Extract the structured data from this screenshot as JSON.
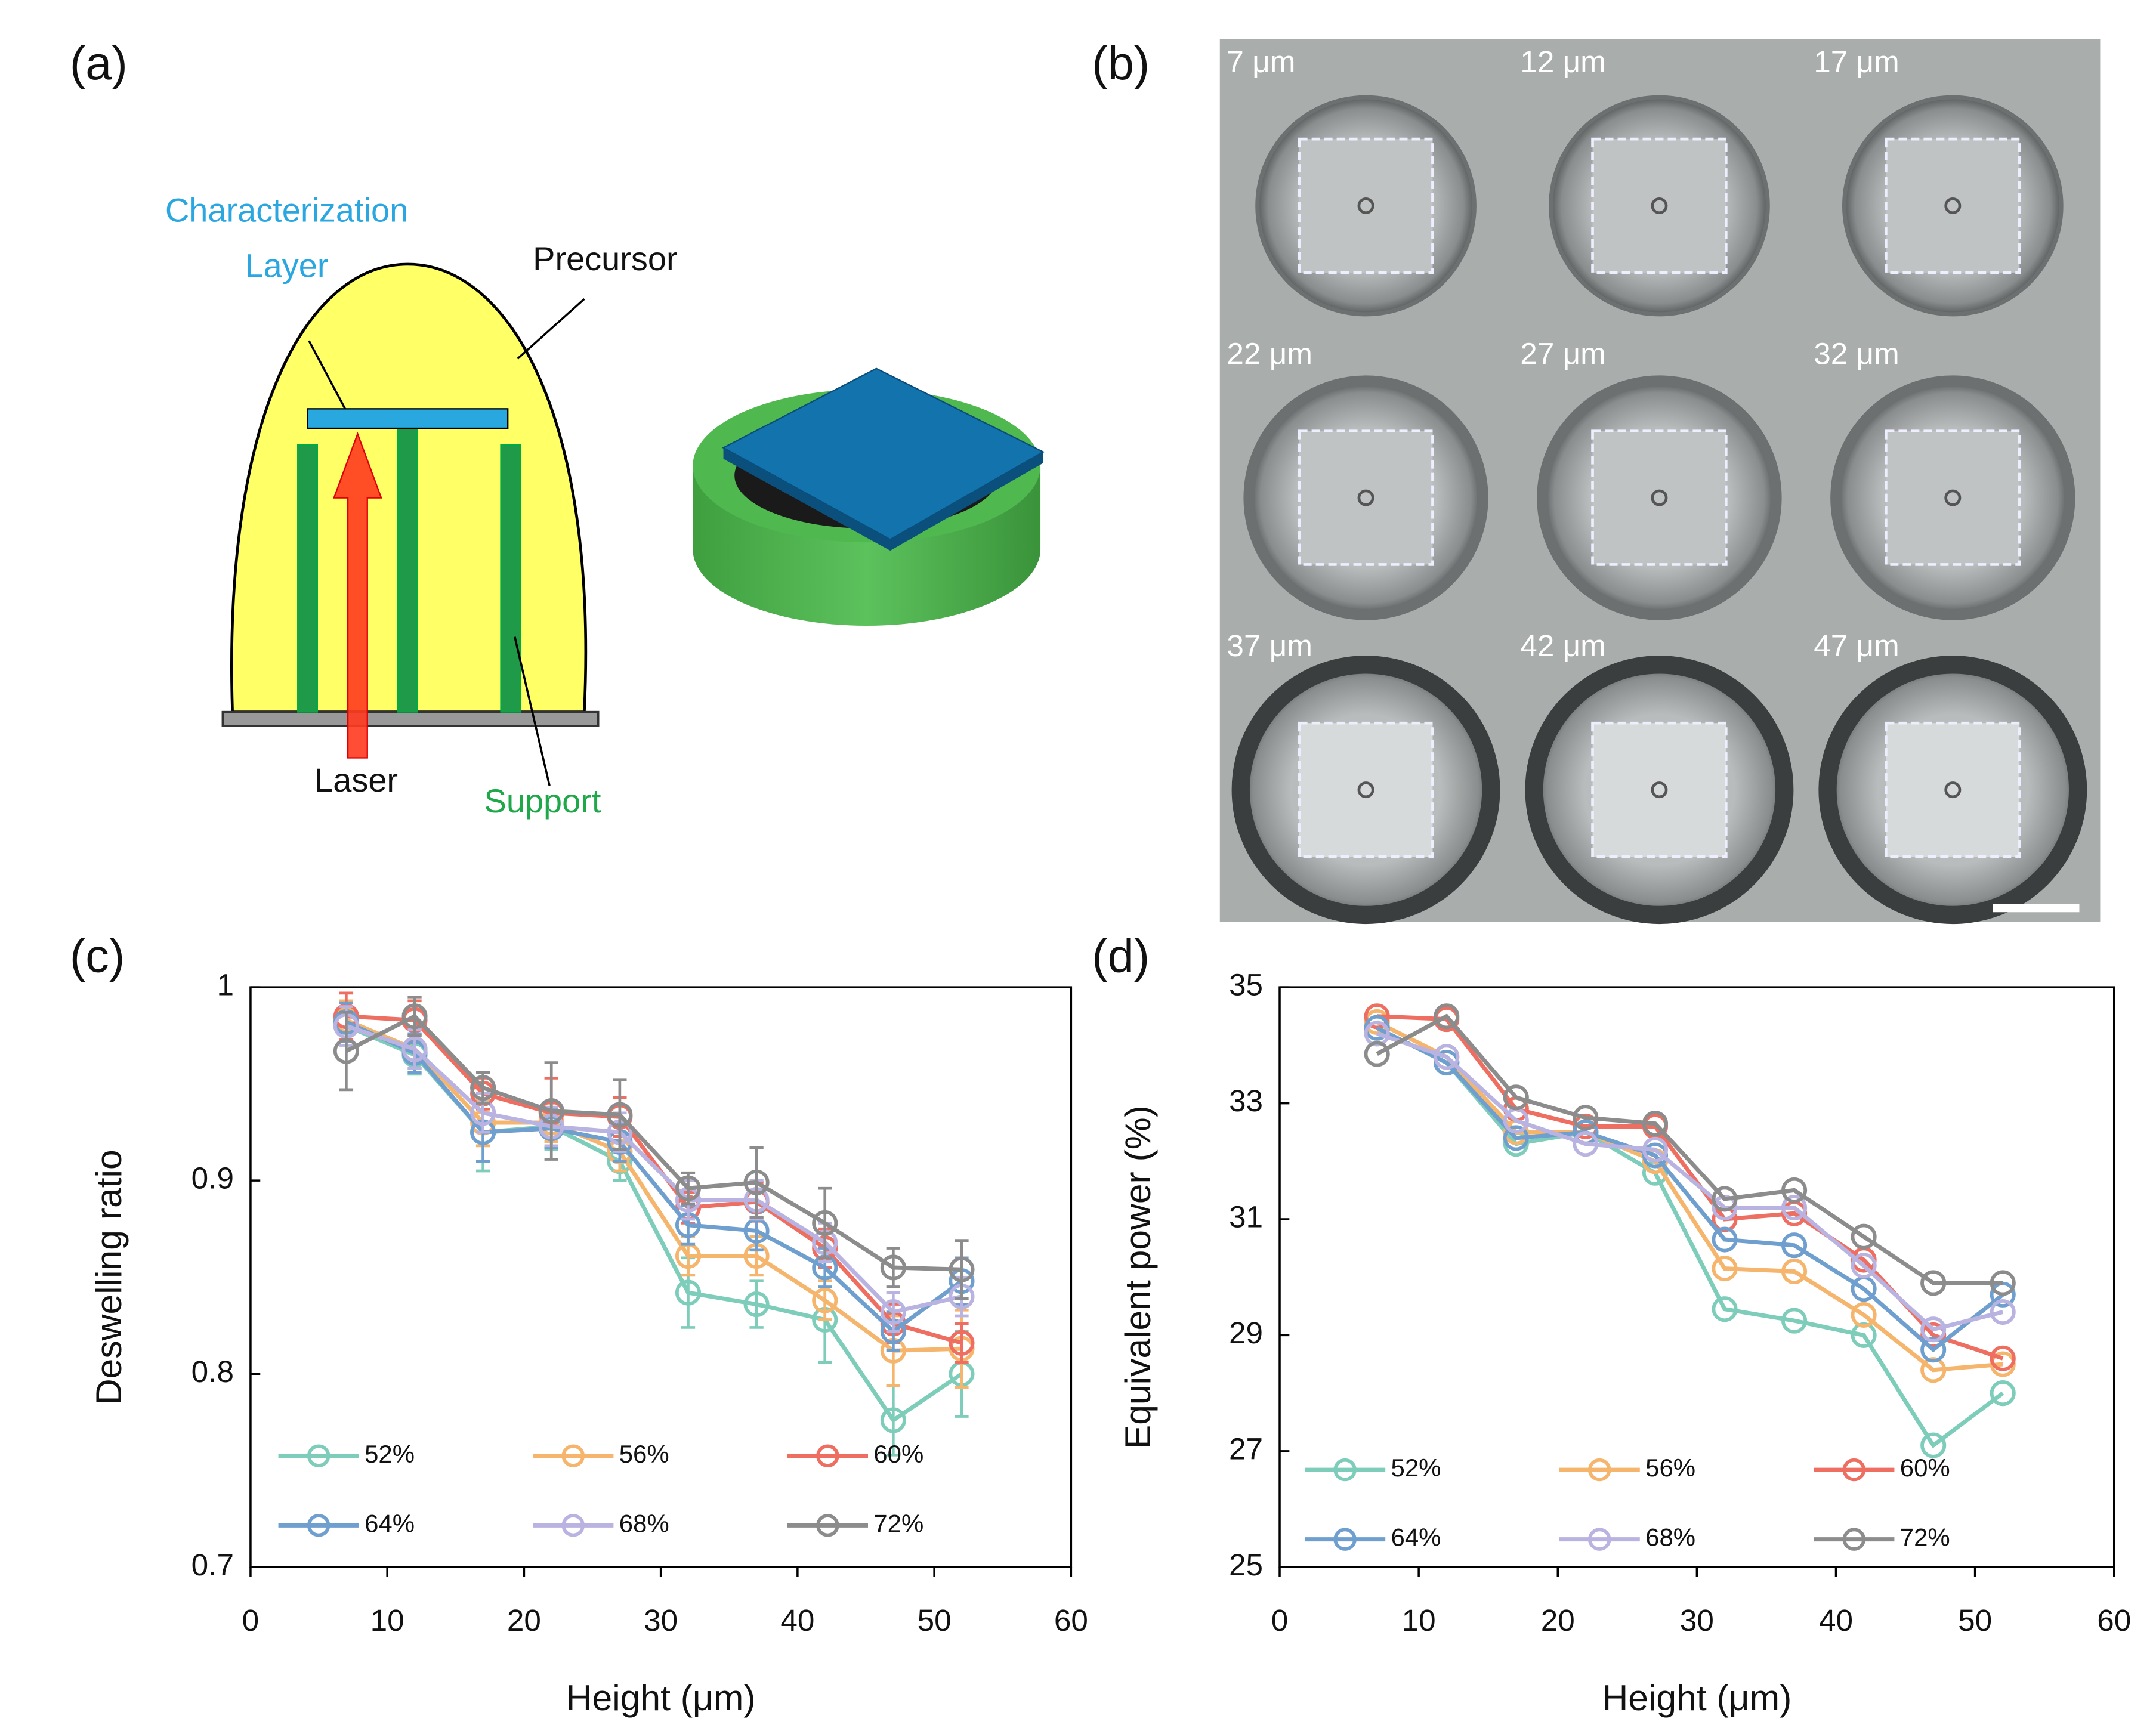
{
  "panels": {
    "a": "(a)",
    "b": "(b)",
    "c": "(c)",
    "d": "(d)"
  },
  "diagram": {
    "characterization_layer": [
      "Characterization",
      "Layer"
    ],
    "precursor": "Precursor",
    "laser": "Laser",
    "support": "Support"
  },
  "micrograph": {
    "labels": [
      "7 μm",
      "12 μm",
      "17 μm",
      "22 μm",
      "27 μm",
      "32 μm",
      "37 μm",
      "42 μm",
      "47 μm"
    ]
  },
  "chart_data": [
    {
      "type": "line",
      "x_label": "Height (μm)",
      "y_label": "Deswelling ratio",
      "x": [
        7,
        12,
        17,
        22,
        27,
        32,
        37,
        42,
        47,
        52
      ],
      "xlim": [
        0,
        60
      ],
      "xticks": [
        0,
        10,
        20,
        30,
        40,
        50,
        60
      ],
      "ylim": [
        0.7,
        1
      ],
      "yticks": [
        0.7,
        0.8,
        0.9,
        1
      ],
      "legend": "lower left",
      "series": [
        {
          "name": "52%",
          "color": "#7ecdbb",
          "values": [
            0.98,
            0.965,
            0.925,
            0.928,
            0.91,
            0.842,
            0.836,
            0.828,
            0.776,
            0.8
          ],
          "errors": [
            0.01,
            0.01,
            0.02,
            0.012,
            0.01,
            0.018,
            0.012,
            0.022,
            0.018,
            0.022
          ]
        },
        {
          "name": "56%",
          "color": "#f5b56c",
          "values": [
            0.983,
            0.968,
            0.93,
            0.93,
            0.915,
            0.861,
            0.861,
            0.838,
            0.812,
            0.813
          ],
          "errors": [
            0.01,
            0.01,
            0.012,
            0.01,
            0.01,
            0.01,
            0.01,
            0.01,
            0.018,
            0.02
          ]
        },
        {
          "name": "60%",
          "color": "#ee6f62",
          "values": [
            0.985,
            0.983,
            0.945,
            0.935,
            0.933,
            0.886,
            0.889,
            0.865,
            0.826,
            0.816
          ],
          "errors": [
            0.012,
            0.01,
            0.008,
            0.018,
            0.01,
            0.008,
            0.01,
            0.01,
            0.01,
            0.01
          ]
        },
        {
          "name": "64%",
          "color": "#6f9fcf",
          "values": [
            0.982,
            0.966,
            0.925,
            0.927,
            0.92,
            0.877,
            0.874,
            0.855,
            0.822,
            0.848
          ],
          "errors": [
            0.01,
            0.01,
            0.015,
            0.01,
            0.01,
            0.01,
            0.01,
            0.01,
            0.01,
            0.012
          ]
        },
        {
          "name": "68%",
          "color": "#b9b3e1",
          "values": [
            0.98,
            0.968,
            0.935,
            0.928,
            0.925,
            0.89,
            0.89,
            0.868,
            0.832,
            0.84
          ],
          "errors": [
            0.01,
            0.01,
            0.01,
            0.01,
            0.01,
            0.01,
            0.01,
            0.01,
            0.01,
            0.01
          ]
        },
        {
          "name": "72%",
          "color": "#8c8c8c",
          "values": [
            0.967,
            0.985,
            0.948,
            0.936,
            0.934,
            0.896,
            0.899,
            0.878,
            0.855,
            0.854
          ],
          "errors": [
            0.02,
            0.01,
            0.008,
            0.025,
            0.018,
            0.008,
            0.018,
            0.018,
            0.01,
            0.015
          ]
        }
      ]
    },
    {
      "type": "line",
      "x_label": "Height (μm)",
      "y_label": "Equivalent power (%)",
      "x": [
        7,
        12,
        17,
        22,
        27,
        32,
        37,
        42,
        47,
        52
      ],
      "xlim": [
        0,
        60
      ],
      "xticks": [
        0,
        10,
        20,
        30,
        40,
        50,
        60
      ],
      "ylim": [
        25,
        35
      ],
      "yticks": [
        25,
        27,
        29,
        31,
        33,
        35
      ],
      "legend": "lower left",
      "series": [
        {
          "name": "52%",
          "color": "#7ecdbb",
          "values": [
            34.3,
            33.7,
            32.3,
            32.5,
            31.8,
            29.45,
            29.25,
            29.0,
            27.1,
            28.0
          ]
        },
        {
          "name": "56%",
          "color": "#f5b56c",
          "values": [
            34.4,
            33.8,
            32.5,
            32.5,
            32.0,
            30.15,
            30.1,
            29.35,
            28.4,
            28.5
          ]
        },
        {
          "name": "60%",
          "color": "#ee6f62",
          "values": [
            34.5,
            34.45,
            32.9,
            32.6,
            32.6,
            31.0,
            31.1,
            30.3,
            29.0,
            28.6
          ]
        },
        {
          "name": "64%",
          "color": "#6f9fcf",
          "values": [
            34.3,
            33.7,
            32.4,
            32.5,
            32.1,
            30.65,
            30.55,
            29.8,
            28.75,
            29.7
          ]
        },
        {
          "name": "68%",
          "color": "#b9b3e1",
          "values": [
            34.2,
            33.8,
            32.7,
            32.3,
            32.2,
            31.2,
            31.2,
            30.2,
            29.1,
            29.4
          ]
        },
        {
          "name": "72%",
          "color": "#8c8c8c",
          "values": [
            33.85,
            34.5,
            33.1,
            32.75,
            32.65,
            31.35,
            31.5,
            30.7,
            29.9,
            29.9
          ]
        }
      ]
    }
  ]
}
